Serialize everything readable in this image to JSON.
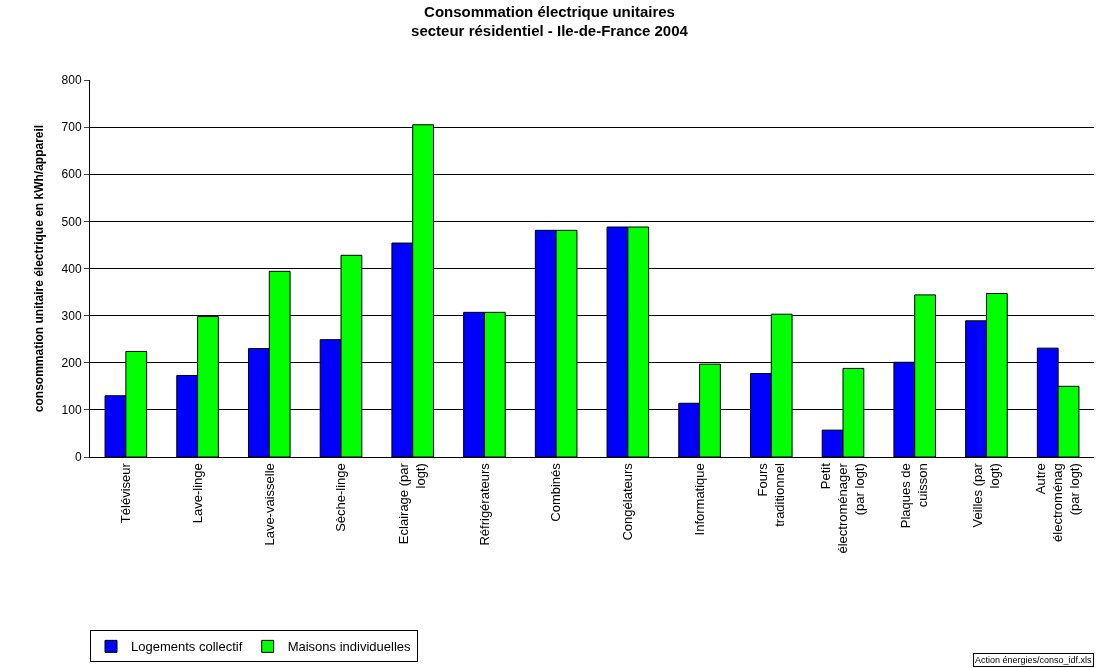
{
  "chart_data": {
    "type": "bar",
    "title": "Consommation électrique unitaires\nsecteur résidentiel - Ile-de-France 2004",
    "ylabel": "consommation unitaire électrique en kWh/appareil",
    "categories": [
      "Téléviseur",
      "Lave-linge",
      "Lave-vaisselle",
      "Sèche-linge",
      "Eclairage (par logt)",
      "Réfrigérateurs",
      "Combinés",
      "Congélateurs",
      "Informatique",
      "Fours traditionnel",
      "Petit électroménager (par logt)",
      "Plaques de cuisson",
      "Veilles (par logt)",
      "Autre électroménag (par logt)"
    ],
    "series": [
      {
        "name": "Logements collectif",
        "color": "#0000ff",
        "values": [
          130,
          173,
          230,
          249,
          454,
          307,
          481,
          488,
          114,
          177,
          57,
          201,
          289,
          231
        ]
      },
      {
        "name": "Maisons individuelles",
        "color": "#00ff00",
        "values": [
          224,
          298,
          394,
          428,
          705,
          307,
          481,
          488,
          197,
          303,
          188,
          344,
          347,
          150
        ]
      }
    ],
    "ylim": [
      0,
      800
    ],
    "yticks": [
      0,
      100,
      200,
      300,
      400,
      500,
      600,
      700,
      800
    ],
    "grid": "y",
    "legend": "bottom left",
    "annotations": [
      "Action énergies/conso_idf.xls"
    ]
  }
}
